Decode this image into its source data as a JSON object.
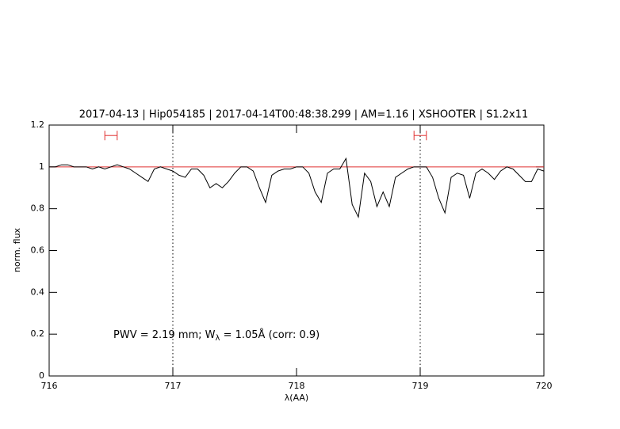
{
  "chart_data": {
    "type": "line",
    "title": "2017-04-13 | Hip054185 | 2017-04-14T00:48:38.299 | AM=1.16 | XSHOOTER | S1.2x11",
    "title_color": "#0000ff",
    "xlabel": "λ(AA)",
    "ylabel": "norm. flux",
    "annotation": [
      "PWV = 2.19 mm; W",
      "λ",
      " = 1.05Å  (corr: 0.9)"
    ],
    "annotation_color": "#0000ff",
    "xlim": [
      716,
      720
    ],
    "xticks": [
      716,
      717,
      718,
      719,
      720
    ],
    "ylim": [
      0,
      1.2
    ],
    "yticks": [
      0,
      0.2,
      0.4,
      0.6,
      0.8,
      1,
      1.2
    ],
    "x": [
      716.0,
      716.05,
      716.1,
      716.15,
      716.2,
      716.25,
      716.3,
      716.35,
      716.4,
      716.45,
      716.5,
      716.55,
      716.6,
      716.65,
      716.7,
      716.75,
      716.8,
      716.85,
      716.9,
      716.95,
      717.0,
      717.05,
      717.1,
      717.15,
      717.2,
      717.25,
      717.3,
      717.35,
      717.4,
      717.45,
      717.5,
      717.55,
      717.6,
      717.65,
      717.7,
      717.75,
      717.8,
      717.85,
      717.9,
      717.95,
      718.0,
      718.05,
      718.1,
      718.15,
      718.2,
      718.25,
      718.3,
      718.35,
      718.4,
      718.45,
      718.5,
      718.55,
      718.6,
      718.65,
      718.7,
      718.75,
      718.8,
      718.85,
      718.9,
      718.95,
      719.0,
      719.05,
      719.1,
      719.15,
      719.2,
      719.25,
      719.3,
      719.35,
      719.4,
      719.45,
      719.5,
      719.55,
      719.6,
      719.65,
      719.7,
      719.75,
      719.8,
      719.85,
      719.9,
      719.95,
      720.0
    ],
    "series": [
      {
        "color": "#000000",
        "values": [
          1.0,
          1.0,
          1.01,
          1.01,
          1.0,
          1.0,
          1.0,
          0.99,
          1.0,
          0.99,
          1.0,
          1.01,
          1.0,
          0.99,
          0.97,
          0.95,
          0.93,
          0.99,
          1.0,
          0.99,
          0.98,
          0.96,
          0.95,
          0.99,
          0.99,
          0.96,
          0.9,
          0.92,
          0.9,
          0.93,
          0.97,
          1.0,
          1.0,
          0.98,
          0.9,
          0.83,
          0.96,
          0.98,
          0.99,
          0.99,
          1.0,
          1.0,
          0.97,
          0.88,
          0.83,
          0.97,
          0.99,
          0.99,
          1.04,
          0.82,
          0.76,
          0.97,
          0.93,
          0.81,
          0.88,
          0.81,
          0.95,
          0.97,
          0.99,
          1.0,
          1.0,
          1.0,
          0.95,
          0.85,
          0.78,
          0.95,
          0.97,
          0.96,
          0.85,
          0.97,
          0.99,
          0.97,
          0.94,
          0.98,
          1.0,
          0.99,
          0.96,
          0.93,
          0.93,
          0.99,
          0.98
        ]
      }
    ],
    "hline": {
      "value": 1,
      "color": "#e03030"
    },
    "vlines": [
      717,
      719
    ],
    "intervals": [
      {
        "x": [
          716.45,
          716.55
        ],
        "y": 1.15,
        "color": "#e03030"
      },
      {
        "x": [
          718.95,
          719.05
        ],
        "y": 1.15,
        "color": "#e03030"
      }
    ]
  }
}
